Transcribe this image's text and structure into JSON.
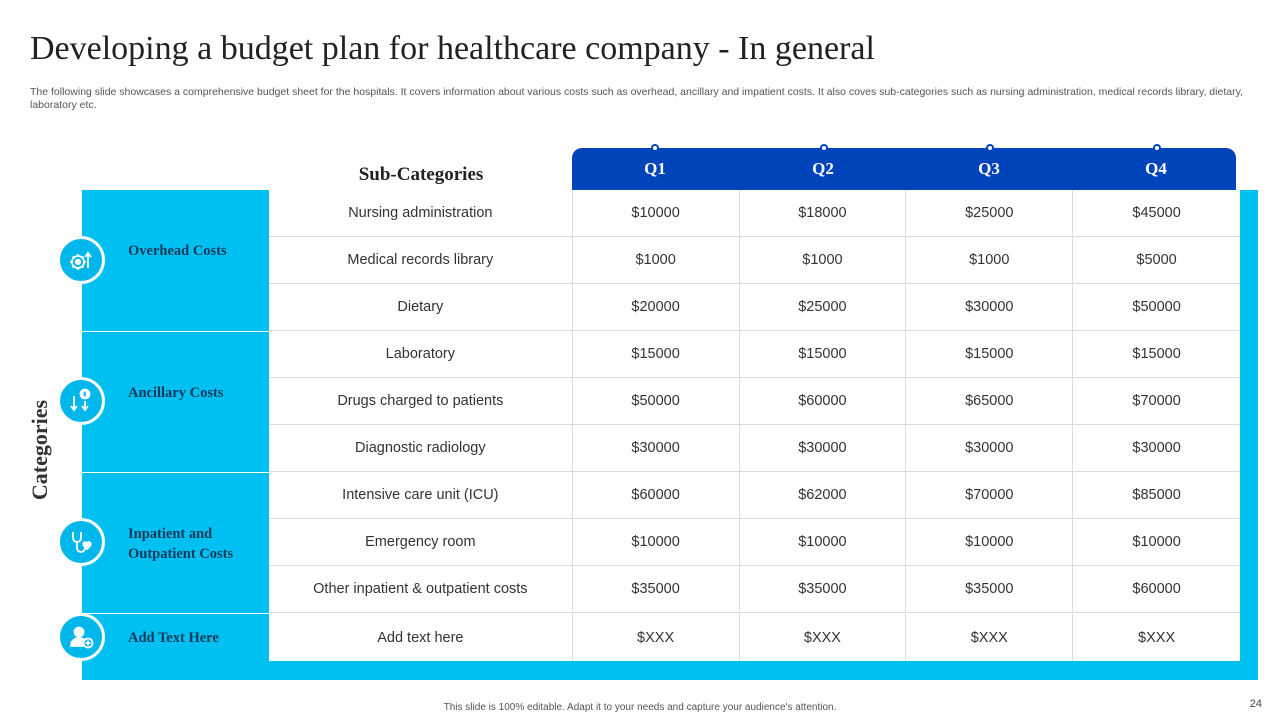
{
  "slide": {
    "title": "Developing a budget plan for healthcare company - In general",
    "subtitle": "The following slide showcases a comprehensive budget sheet for the hospitals. It covers information about various costs such as overhead, ancillary and impatient costs. It also coves sub-categories such as nursing administration, medical records library, dietary, laboratory etc.",
    "side_label": "Categories",
    "footer": "This slide is 100% editable.  Adapt it to your needs and capture your audience's attention.",
    "page_number": "24"
  },
  "table": {
    "subcategories_header": "Sub-Categories",
    "quarters": [
      "Q1",
      "Q2",
      "Q3",
      "Q4"
    ],
    "categories": [
      {
        "label": "Overhead Costs",
        "icon": "gear-money-icon"
      },
      {
        "label": "Ancillary Costs",
        "icon": "dollar-down-arrows-icon"
      },
      {
        "label": "Inpatient and Outpatient Costs",
        "icon": "stethoscope-heart-icon"
      },
      {
        "label": "Add Text Here",
        "icon": "user-plus-icon"
      }
    ],
    "rows": [
      {
        "sub": "Nursing administration",
        "q": [
          "$10000",
          "$18000",
          "$25000",
          "$45000"
        ]
      },
      {
        "sub": "Medical records library",
        "q": [
          "$1000",
          "$1000",
          "$1000",
          "$5000"
        ]
      },
      {
        "sub": "Dietary",
        "q": [
          "$20000",
          "$25000",
          "$30000",
          "$50000"
        ]
      },
      {
        "sub": "Laboratory",
        "q": [
          "$15000",
          "$15000",
          "$15000",
          "$15000"
        ]
      },
      {
        "sub": "Drugs charged to patients",
        "q": [
          "$50000",
          "$60000",
          "$65000",
          "$70000"
        ]
      },
      {
        "sub": "Diagnostic radiology",
        "q": [
          "$30000",
          "$30000",
          "$30000",
          "$30000"
        ]
      },
      {
        "sub": "Intensive care unit (ICU)",
        "q": [
          "$60000",
          "$62000",
          "$70000",
          "$85000"
        ]
      },
      {
        "sub": "Emergency room",
        "q": [
          "$10000",
          "$10000",
          "$10000",
          "$10000"
        ]
      },
      {
        "sub": "Other inpatient & outpatient costs",
        "q": [
          "$35000",
          "$35000",
          "$35000",
          "$60000"
        ]
      },
      {
        "sub": "Add text here",
        "q": [
          "$XXX",
          "$XXX",
          "$XXX",
          "$XXX"
        ]
      }
    ]
  },
  "colors": {
    "cyan": "#00c0f2",
    "header_blue": "#0044bb",
    "label_navy": "#10395c"
  }
}
